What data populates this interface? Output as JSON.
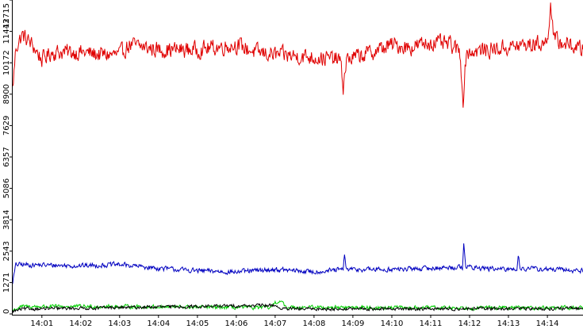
{
  "chart_data": {
    "type": "line",
    "title": "",
    "xlabel": "",
    "ylabel": "",
    "x_ticks": [
      "14:01",
      "14:02",
      "14:03",
      "14:04",
      "14:05",
      "14:06",
      "14:07",
      "14:08",
      "14:09",
      "14:10",
      "14:11",
      "14:12",
      "14:13",
      "14:14"
    ],
    "y_ticks": [
      "0",
      "1271",
      "2543",
      "3814",
      "5086",
      "6357",
      "7629",
      "8900",
      "10172",
      "11443",
      "12715"
    ],
    "xlim": [
      "14:00:15",
      "14:14:55"
    ],
    "ylim": [
      0,
      12715
    ],
    "grid": false,
    "legend": "none",
    "series": [
      {
        "color": "#e00000",
        "baseline": 10500,
        "jitter": 300,
        "points": [
          [
            "14:00:15",
            9100
          ],
          [
            "14:00:20",
            10800
          ],
          [
            "14:00:30",
            11300
          ],
          [
            "14:00:45",
            10900
          ],
          [
            "14:01:00",
            10300
          ],
          [
            "14:01:15",
            10600
          ],
          [
            "14:02:00",
            10600
          ],
          [
            "14:02:30",
            10500
          ],
          [
            "14:03:00",
            10500
          ],
          [
            "14:03:15",
            10900
          ],
          [
            "14:04:00",
            10700
          ],
          [
            "14:05:00",
            10700
          ],
          [
            "14:06:00",
            10900
          ],
          [
            "14:06:30",
            10600
          ],
          [
            "14:07:00",
            10500
          ],
          [
            "14:08:00",
            10400
          ],
          [
            "14:08:40",
            10300
          ],
          [
            "14:08:45",
            9200
          ],
          [
            "14:08:50",
            10300
          ],
          [
            "14:09:30",
            10600
          ],
          [
            "14:10:00",
            10900
          ],
          [
            "14:10:30",
            10800
          ],
          [
            "14:11:00",
            11000
          ],
          [
            "14:11:30",
            10900
          ],
          [
            "14:11:45",
            10600
          ],
          [
            "14:11:50",
            8700
          ],
          [
            "14:11:55",
            10600
          ],
          [
            "14:12:30",
            10700
          ],
          [
            "14:13:00",
            10800
          ],
          [
            "14:13:30",
            10900
          ],
          [
            "14:14:00",
            11000
          ],
          [
            "14:14:05",
            12700
          ],
          [
            "14:14:10",
            11100
          ],
          [
            "14:14:55",
            10700
          ]
        ]
      },
      {
        "color": "#0000c0",
        "baseline": 1950,
        "jitter": 90,
        "points": [
          [
            "14:00:15",
            1300
          ],
          [
            "14:00:20",
            2000
          ],
          [
            "14:02:00",
            1950
          ],
          [
            "14:03:00",
            2000
          ],
          [
            "14:04:00",
            1850
          ],
          [
            "14:05:00",
            1750
          ],
          [
            "14:06:00",
            1700
          ],
          [
            "14:07:00",
            1800
          ],
          [
            "14:08:00",
            1700
          ],
          [
            "14:08:45",
            1800
          ],
          [
            "14:08:47",
            2400
          ],
          [
            "14:08:50",
            1800
          ],
          [
            "14:10:00",
            1800
          ],
          [
            "14:11:00",
            1850
          ],
          [
            "14:11:49",
            1900
          ],
          [
            "14:11:51",
            2950
          ],
          [
            "14:11:54",
            1900
          ],
          [
            "14:12:50",
            1800
          ],
          [
            "14:13:00",
            1800
          ],
          [
            "14:13:13",
            1850
          ],
          [
            "14:13:15",
            2400
          ],
          [
            "14:13:18",
            1850
          ],
          [
            "14:14:55",
            1750
          ]
        ]
      },
      {
        "color": "#00d000",
        "baseline": 280,
        "jitter": 70,
        "points": [
          [
            "14:00:15",
            150
          ],
          [
            "14:00:30",
            300
          ],
          [
            "14:03:00",
            300
          ],
          [
            "14:06:55",
            250
          ],
          [
            "14:07:00",
            500
          ],
          [
            "14:07:05",
            450
          ],
          [
            "14:07:10",
            520
          ],
          [
            "14:07:15",
            280
          ],
          [
            "14:10:00",
            250
          ],
          [
            "14:14:55",
            250
          ]
        ]
      },
      {
        "color": "#000000",
        "baseline": 200,
        "jitter": 60,
        "points": [
          [
            "14:00:15",
            100
          ],
          [
            "14:00:30",
            200
          ],
          [
            "14:07:00",
            350
          ],
          [
            "14:07:10",
            200
          ],
          [
            "14:14:55",
            220
          ]
        ]
      }
    ]
  }
}
